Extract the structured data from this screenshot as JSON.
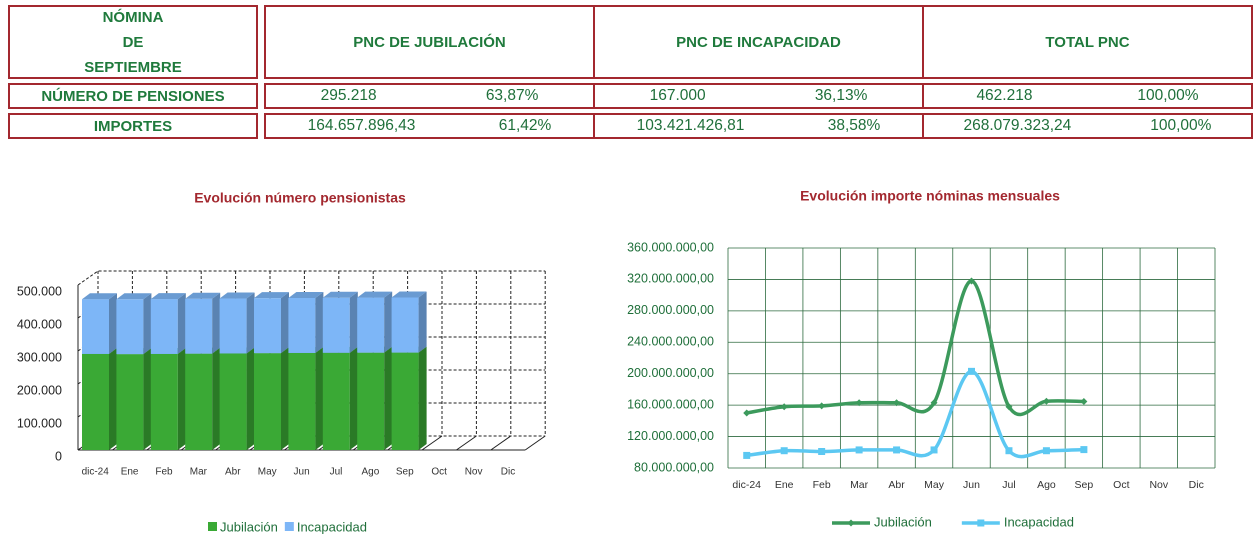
{
  "table": {
    "header": {
      "lines": [
        "NÓMINA",
        "DE",
        "SEPTIEMBRE"
      ],
      "columns": [
        "PNC DE JUBILACIÓN",
        "PNC DE INCAPACIDAD",
        "TOTAL PNC"
      ]
    },
    "rows": [
      {
        "label": "NÚMERO DE PENSIONES",
        "cells": [
          "295.218",
          "63,87%",
          "167.000",
          "36,13%",
          "462.218",
          "100,00%"
        ]
      },
      {
        "label": "IMPORTES",
        "cells": [
          "164.657.896,43",
          "61,42%",
          "103.421.426,81",
          "38,58%",
          "268.079.323,24",
          "100,00%"
        ]
      }
    ]
  },
  "chart_data": [
    {
      "type": "bar3d",
      "title": "Evolución número pensionistas",
      "categories": [
        "dic-24",
        "Ene",
        "Feb",
        "Mar",
        "Abr",
        "May",
        "Jun",
        "Jul",
        "Ago",
        "Sep",
        "Oct",
        "Nov",
        "Dic"
      ],
      "series": [
        {
          "name": "Jubilación",
          "color": "#3aa935",
          "values": [
            291000,
            290500,
            291000,
            292000,
            292500,
            293500,
            294000,
            294500,
            295000,
            295218,
            null,
            null,
            null
          ]
        },
        {
          "name": "Incapacidad",
          "color": "#7db6f7",
          "values": [
            166000,
            166200,
            166300,
            166400,
            166500,
            166600,
            166700,
            166800,
            166900,
            167000,
            null,
            null,
            null
          ]
        }
      ],
      "ylim": [
        0,
        500000
      ],
      "yticks": [
        0,
        {
          "value": 100000,
          "label": "100.000"
        },
        {
          "value": 200000,
          "label": "200.000"
        },
        {
          "value": 300000,
          "label": "300.000"
        },
        {
          "value": 400000,
          "label": "400.000"
        },
        {
          "value": 500000,
          "label": "500.000"
        }
      ],
      "grid": true,
      "legend": "bottom"
    },
    {
      "type": "line",
      "title": "Evolución importe nóminas mensuales",
      "categories": [
        "dic-24",
        "Ene",
        "Feb",
        "Mar",
        "Abr",
        "May",
        "Jun",
        "Jul",
        "Ago",
        "Sep",
        "Oct",
        "Nov",
        "Dic"
      ],
      "series": [
        {
          "name": "Jubilación",
          "color": "#3c9a5c",
          "values": [
            150000000,
            158000000,
            159000000,
            163000000,
            163000000,
            163000000,
            318000000,
            158000000,
            165000000,
            164657896,
            null,
            null,
            null
          ]
        },
        {
          "name": "Incapacidad",
          "color": "#5cc8f2",
          "values": [
            96000000,
            102000000,
            101000000,
            103000000,
            103000000,
            103000000,
            203000000,
            102000000,
            102000000,
            103421427,
            null,
            null,
            null
          ]
        }
      ],
      "ylim": [
        80000000,
        360000000
      ],
      "yticks": [
        {
          "value": 80000000,
          "label": "80.000.000,00"
        },
        {
          "value": 120000000,
          "label": "120.000.000,00"
        },
        {
          "value": 160000000,
          "label": "160.000.000,00"
        },
        {
          "value": 200000000,
          "label": "200.000.000,00"
        },
        {
          "value": 240000000,
          "label": "240.000.000,00"
        },
        {
          "value": 280000000,
          "label": "280.000.000,00"
        },
        {
          "value": 320000000,
          "label": "320.000.000,00"
        },
        {
          "value": 360000000,
          "label": "360.000.000,00"
        }
      ],
      "grid": true,
      "legend": "bottom"
    }
  ]
}
